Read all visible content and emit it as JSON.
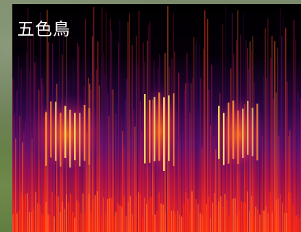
{
  "label": "五色鳥",
  "colors": {
    "background": "#000000",
    "low": "#3a0a5a",
    "mid": "#c01050",
    "high": "#ff3a10",
    "peak": "#ffe060"
  }
}
